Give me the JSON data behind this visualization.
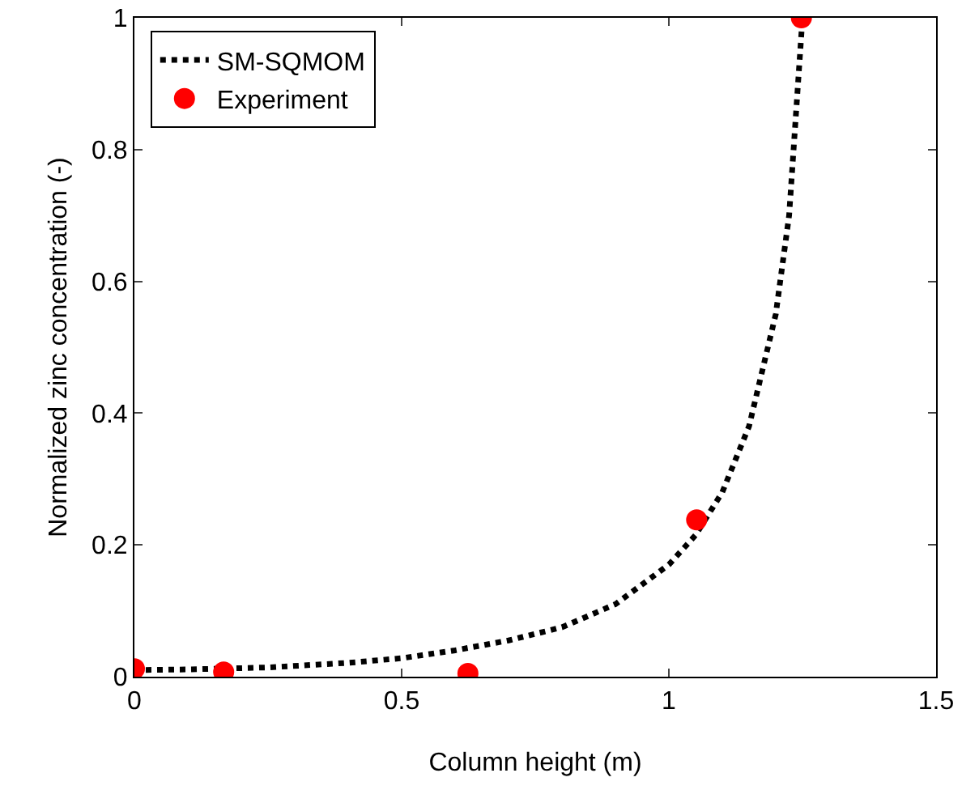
{
  "chart_data": {
    "type": "line",
    "xlabel": "Column height (m)",
    "ylabel": "Normalized zinc concentration (-)",
    "xlim": [
      0,
      1.5
    ],
    "xticks": [
      0,
      0.5,
      1,
      1.5
    ],
    "ylim": [
      0,
      1
    ],
    "yticks": [
      0,
      0.2,
      0.4,
      0.6,
      0.8,
      1
    ],
    "grid": false,
    "legend": "top left",
    "series": [
      {
        "name": "SM-SQMOM",
        "line_style": "dotted",
        "marker": "none",
        "color": "#000000",
        "x": [
          0,
          0.1,
          0.25,
          0.4,
          0.5,
          0.6,
          0.7,
          0.8,
          0.9,
          1.0,
          1.05,
          1.1,
          1.15,
          1.2,
          1.225,
          1.25
        ],
        "values": [
          0.01,
          0.011,
          0.014,
          0.021,
          0.028,
          0.04,
          0.055,
          0.075,
          0.11,
          0.17,
          0.215,
          0.28,
          0.38,
          0.55,
          0.7,
          1.0
        ]
      },
      {
        "name": "Experiment",
        "type": "scatter",
        "marker": "circle",
        "color": "#ff0000",
        "x": [
          0,
          0.167,
          0.624,
          1.052,
          1.248
        ],
        "values": [
          0.012,
          0.007,
          0.005,
          0.238,
          1.0
        ]
      }
    ]
  }
}
